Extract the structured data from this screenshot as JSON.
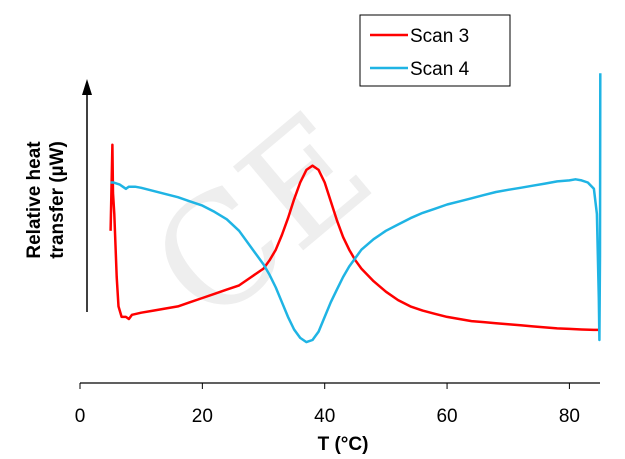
{
  "chart_data": {
    "type": "line",
    "xlabel": "T (°C)",
    "ylabel": [
      "Relative heat",
      "transfer (µW)"
    ],
    "xlim": [
      0,
      85
    ],
    "xticks": [
      0,
      20,
      40,
      60,
      80
    ],
    "ylim": [
      0,
      100
    ],
    "y_axis_shown": false,
    "grid": false,
    "legend_position": "top-right",
    "series": [
      {
        "name": "Scan 3",
        "color": "#ff0000",
        "x": [
          5,
          5.3,
          5.4,
          5.6,
          5.8,
          6.0,
          6.3,
          6.8,
          7.5,
          8.0,
          8.5,
          10,
          12,
          14,
          16,
          18,
          20,
          22,
          24,
          26,
          28,
          30,
          31,
          32,
          33,
          34,
          35,
          36,
          37,
          38,
          39,
          40,
          41,
          42,
          43,
          44,
          45,
          46,
          48,
          50,
          52,
          54,
          56,
          58,
          60,
          62,
          64,
          66,
          68,
          70,
          72,
          74,
          76,
          78,
          80,
          82,
          84,
          84.8
        ],
        "y": [
          52,
          93,
          70,
          60,
          45,
          30,
          16,
          11,
          11,
          10,
          12,
          13,
          14,
          15,
          16,
          18,
          20,
          22,
          24,
          26,
          30,
          34,
          38,
          43,
          50,
          58,
          67,
          75,
          81,
          83,
          81,
          75,
          66,
          57,
          49,
          43,
          38,
          34,
          28,
          23,
          19,
          16,
          14,
          12.5,
          11,
          10,
          9,
          8.5,
          8,
          7.5,
          7,
          6.5,
          6,
          5.5,
          5.3,
          5,
          4.8,
          4.8
        ]
      },
      {
        "name": "Scan 4",
        "color": "#1fb4e4",
        "x": [
          5,
          5.5,
          6,
          6.5,
          7,
          7.5,
          8,
          9,
          10,
          12,
          14,
          16,
          18,
          20,
          22,
          24,
          26,
          28,
          30,
          31,
          32,
          33,
          34,
          35,
          36,
          37,
          38,
          39,
          40,
          41,
          42,
          43,
          44,
          45,
          46,
          48,
          50,
          52,
          54,
          56,
          58,
          60,
          62,
          64,
          66,
          68,
          70,
          72,
          74,
          76,
          78,
          80,
          81,
          82,
          83,
          84,
          84.5,
          84.8,
          84.9,
          85,
          85.05
        ],
        "y": [
          75,
          75,
          74.5,
          74,
          73,
          72,
          73,
          73,
          72.5,
          71,
          69.5,
          68,
          66,
          64,
          61,
          57.5,
          52,
          44,
          36,
          31,
          25,
          18,
          11,
          5,
          1,
          -1,
          0,
          4,
          11,
          18,
          24,
          30,
          35,
          39,
          43,
          48,
          52,
          55,
          58,
          60.5,
          62.5,
          64.5,
          66,
          67.5,
          69,
          70.5,
          71.5,
          72.5,
          73.5,
          74.5,
          75.5,
          76,
          76.5,
          76,
          75,
          72,
          60,
          20,
          0,
          40,
          127
        ]
      }
    ]
  },
  "watermark": "CE",
  "colors": {
    "axis": "#000000",
    "background": "#ffffff"
  }
}
